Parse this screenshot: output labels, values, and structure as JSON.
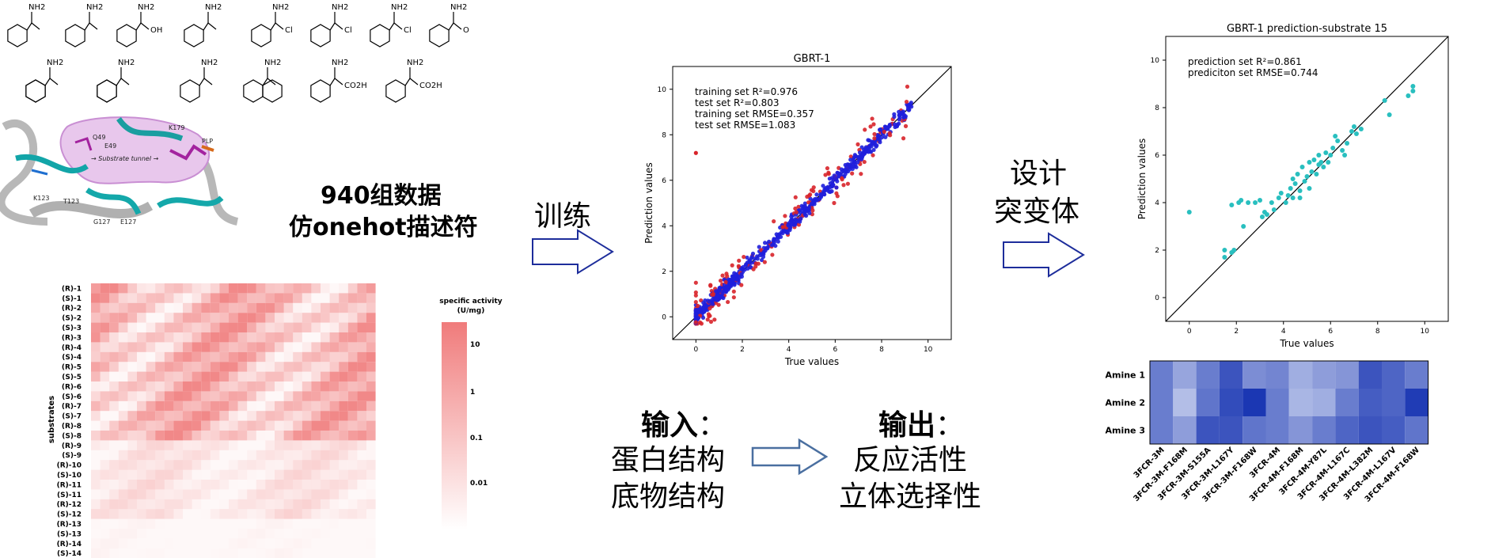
{
  "substrates": {
    "amines": [
      {
        "label": "NH2"
      },
      {
        "label": "NH2"
      },
      {
        "label": "NH2",
        "extra": "OH"
      },
      {
        "label": "NH2"
      },
      {
        "label": "NH2",
        "extra": "Cl"
      },
      {
        "label": "NH2",
        "extra": "Cl"
      },
      {
        "label": "NH2",
        "extra": "Cl"
      },
      {
        "label": "NH2",
        "extra": "O"
      },
      {
        "label": "NH2"
      },
      {
        "label": "NH2"
      },
      {
        "label": "NH2"
      },
      {
        "label": "NH2"
      },
      {
        "label": "NH2",
        "extra": "CO2H"
      },
      {
        "label": "NH2",
        "extra": "CO2H"
      }
    ]
  },
  "protein": {
    "residues": [
      "Q49",
      "E49",
      "K179",
      "PLP",
      "K123",
      "T123",
      "G127",
      "E127"
    ],
    "tunnel_label": "→ Substrate tunnel →"
  },
  "descriptor_text": {
    "line1": "940组数据",
    "line2": "仿onehot描述符"
  },
  "heatmap": {
    "ylabel": "substrates",
    "colorbar_title_1": "specific activity",
    "colorbar_title_2": "(U/mg)",
    "colorbar_ticks": [
      "10",
      "1",
      "0.1",
      "0.01"
    ],
    "rows": [
      "(R)-1",
      "(S)-1",
      "(R)-2",
      "(S)-2",
      "(S)-3",
      "(R)-3",
      "(R)-4",
      "(S)-4",
      "(R)-5",
      "(S)-5",
      "(R)-6",
      "(S)-6",
      "(R)-7",
      "(S)-7",
      "(R)-8",
      "(S)-8",
      "(R)-9",
      "(S)-9",
      "(R)-10",
      "(S)-10",
      "(R)-11",
      "(S)-11",
      "(R)-12",
      "(S)-12",
      "(R)-13",
      "(S)-13",
      "(R)-14",
      "(S)-14"
    ],
    "accent": "#f07b7b"
  },
  "labels": {
    "train": "训练",
    "design_1": "设计",
    "design_2": "突变体",
    "input_title": "输入",
    "input_colon": "：",
    "input_1": "蛋白结构",
    "input_2": "底物结构",
    "output_title": "输出",
    "output_colon": "：",
    "output_1": "反应活性",
    "output_2": "立体选择性"
  },
  "chart_data": [
    {
      "type": "scatter",
      "title": "GBRT-1",
      "xlabel": "True values",
      "ylabel": "Prediction values",
      "xlim": [
        -1,
        11
      ],
      "ylim": [
        -1,
        11
      ],
      "xticks": [
        "0",
        "2",
        "4",
        "6",
        "8",
        "10"
      ],
      "yticks": [
        "0",
        "2",
        "4",
        "6",
        "8",
        "10"
      ],
      "annotations": [
        "training set R²=0.976",
        "test set R²=0.803",
        "training set RMSE=0.357",
        "test set RMSE=1.083"
      ],
      "series_colors": [
        "#1f1fdb",
        "#d8232a"
      ],
      "diagonal": true
    },
    {
      "type": "scatter",
      "title": "GBRT-1 prediction-substrate 15",
      "xlabel": "True values",
      "ylabel": "Prediction values",
      "xlim": [
        -1,
        11
      ],
      "ylim": [
        -1,
        11
      ],
      "xticks": [
        "0",
        "2",
        "4",
        "6",
        "8",
        "10"
      ],
      "yticks": [
        "0",
        "2",
        "4",
        "6",
        "8",
        "10"
      ],
      "annotations": [
        "prediction set R²=0.861",
        "prediciton set RMSE=0.744"
      ],
      "series_colors": [
        "#29bfbf"
      ],
      "diagonal": true,
      "points": [
        [
          0.0,
          3.6
        ],
        [
          1.5,
          1.7
        ],
        [
          1.5,
          2.0
        ],
        [
          1.8,
          1.9
        ],
        [
          1.9,
          2.0
        ],
        [
          1.8,
          3.9
        ],
        [
          2.1,
          4.0
        ],
        [
          2.2,
          4.1
        ],
        [
          2.3,
          3.0
        ],
        [
          2.5,
          4.0
        ],
        [
          2.8,
          4.0
        ],
        [
          3.0,
          4.1
        ],
        [
          3.1,
          3.4
        ],
        [
          3.2,
          3.6
        ],
        [
          3.3,
          3.5
        ],
        [
          3.5,
          4.0
        ],
        [
          3.6,
          3.7
        ],
        [
          3.8,
          4.2
        ],
        [
          3.9,
          4.4
        ],
        [
          4.1,
          4.0
        ],
        [
          4.2,
          4.3
        ],
        [
          4.3,
          4.6
        ],
        [
          4.4,
          4.2
        ],
        [
          4.4,
          5.0
        ],
        [
          4.5,
          4.8
        ],
        [
          4.6,
          5.2
        ],
        [
          4.7,
          4.2
        ],
        [
          4.7,
          4.5
        ],
        [
          4.8,
          5.5
        ],
        [
          4.9,
          4.9
        ],
        [
          5.0,
          5.1
        ],
        [
          5.1,
          4.6
        ],
        [
          5.1,
          5.7
        ],
        [
          5.2,
          5.3
        ],
        [
          5.3,
          5.8
        ],
        [
          5.4,
          5.2
        ],
        [
          5.5,
          5.6
        ],
        [
          5.5,
          6.0
        ],
        [
          5.6,
          5.7
        ],
        [
          5.7,
          5.5
        ],
        [
          5.8,
          6.1
        ],
        [
          5.9,
          5.7
        ],
        [
          6.0,
          6.0
        ],
        [
          6.1,
          6.3
        ],
        [
          6.2,
          6.8
        ],
        [
          6.3,
          6.6
        ],
        [
          6.5,
          6.2
        ],
        [
          6.6,
          6.0
        ],
        [
          6.7,
          6.5
        ],
        [
          6.9,
          7.0
        ],
        [
          7.0,
          7.2
        ],
        [
          7.1,
          6.9
        ],
        [
          7.3,
          7.1
        ],
        [
          8.3,
          8.3
        ],
        [
          8.5,
          7.7
        ],
        [
          9.3,
          8.5
        ],
        [
          9.5,
          8.7
        ],
        [
          9.5,
          8.9
        ]
      ]
    },
    {
      "type": "heatmap",
      "rows": [
        "Amine 1",
        "Amine 2",
        "Amine 3"
      ],
      "columns": [
        "3FCR-3M",
        "3FCR-3M-F168M",
        "3FCR-3M-S155A",
        "3FCR-3M-L167Y",
        "3FCR-3M-F168W",
        "3FCR-4M",
        "3FCR-4M-F168M",
        "3FCR-4M-Y87L",
        "3FCR-4M-L167C",
        "3FCR-4M-L382M",
        "3FCR-4M-L167V",
        "3FCR-4M-F168W"
      ],
      "values": [
        [
          0.55,
          0.3,
          0.55,
          0.8,
          0.45,
          0.5,
          0.25,
          0.35,
          0.4,
          0.8,
          0.7,
          0.55
        ],
        [
          0.55,
          0.15,
          0.6,
          0.85,
          0.98,
          0.55,
          0.2,
          0.25,
          0.55,
          0.75,
          0.7,
          0.95
        ],
        [
          0.55,
          0.35,
          0.8,
          0.8,
          0.6,
          0.55,
          0.4,
          0.55,
          0.7,
          0.8,
          0.75,
          0.6
        ]
      ]
    }
  ]
}
